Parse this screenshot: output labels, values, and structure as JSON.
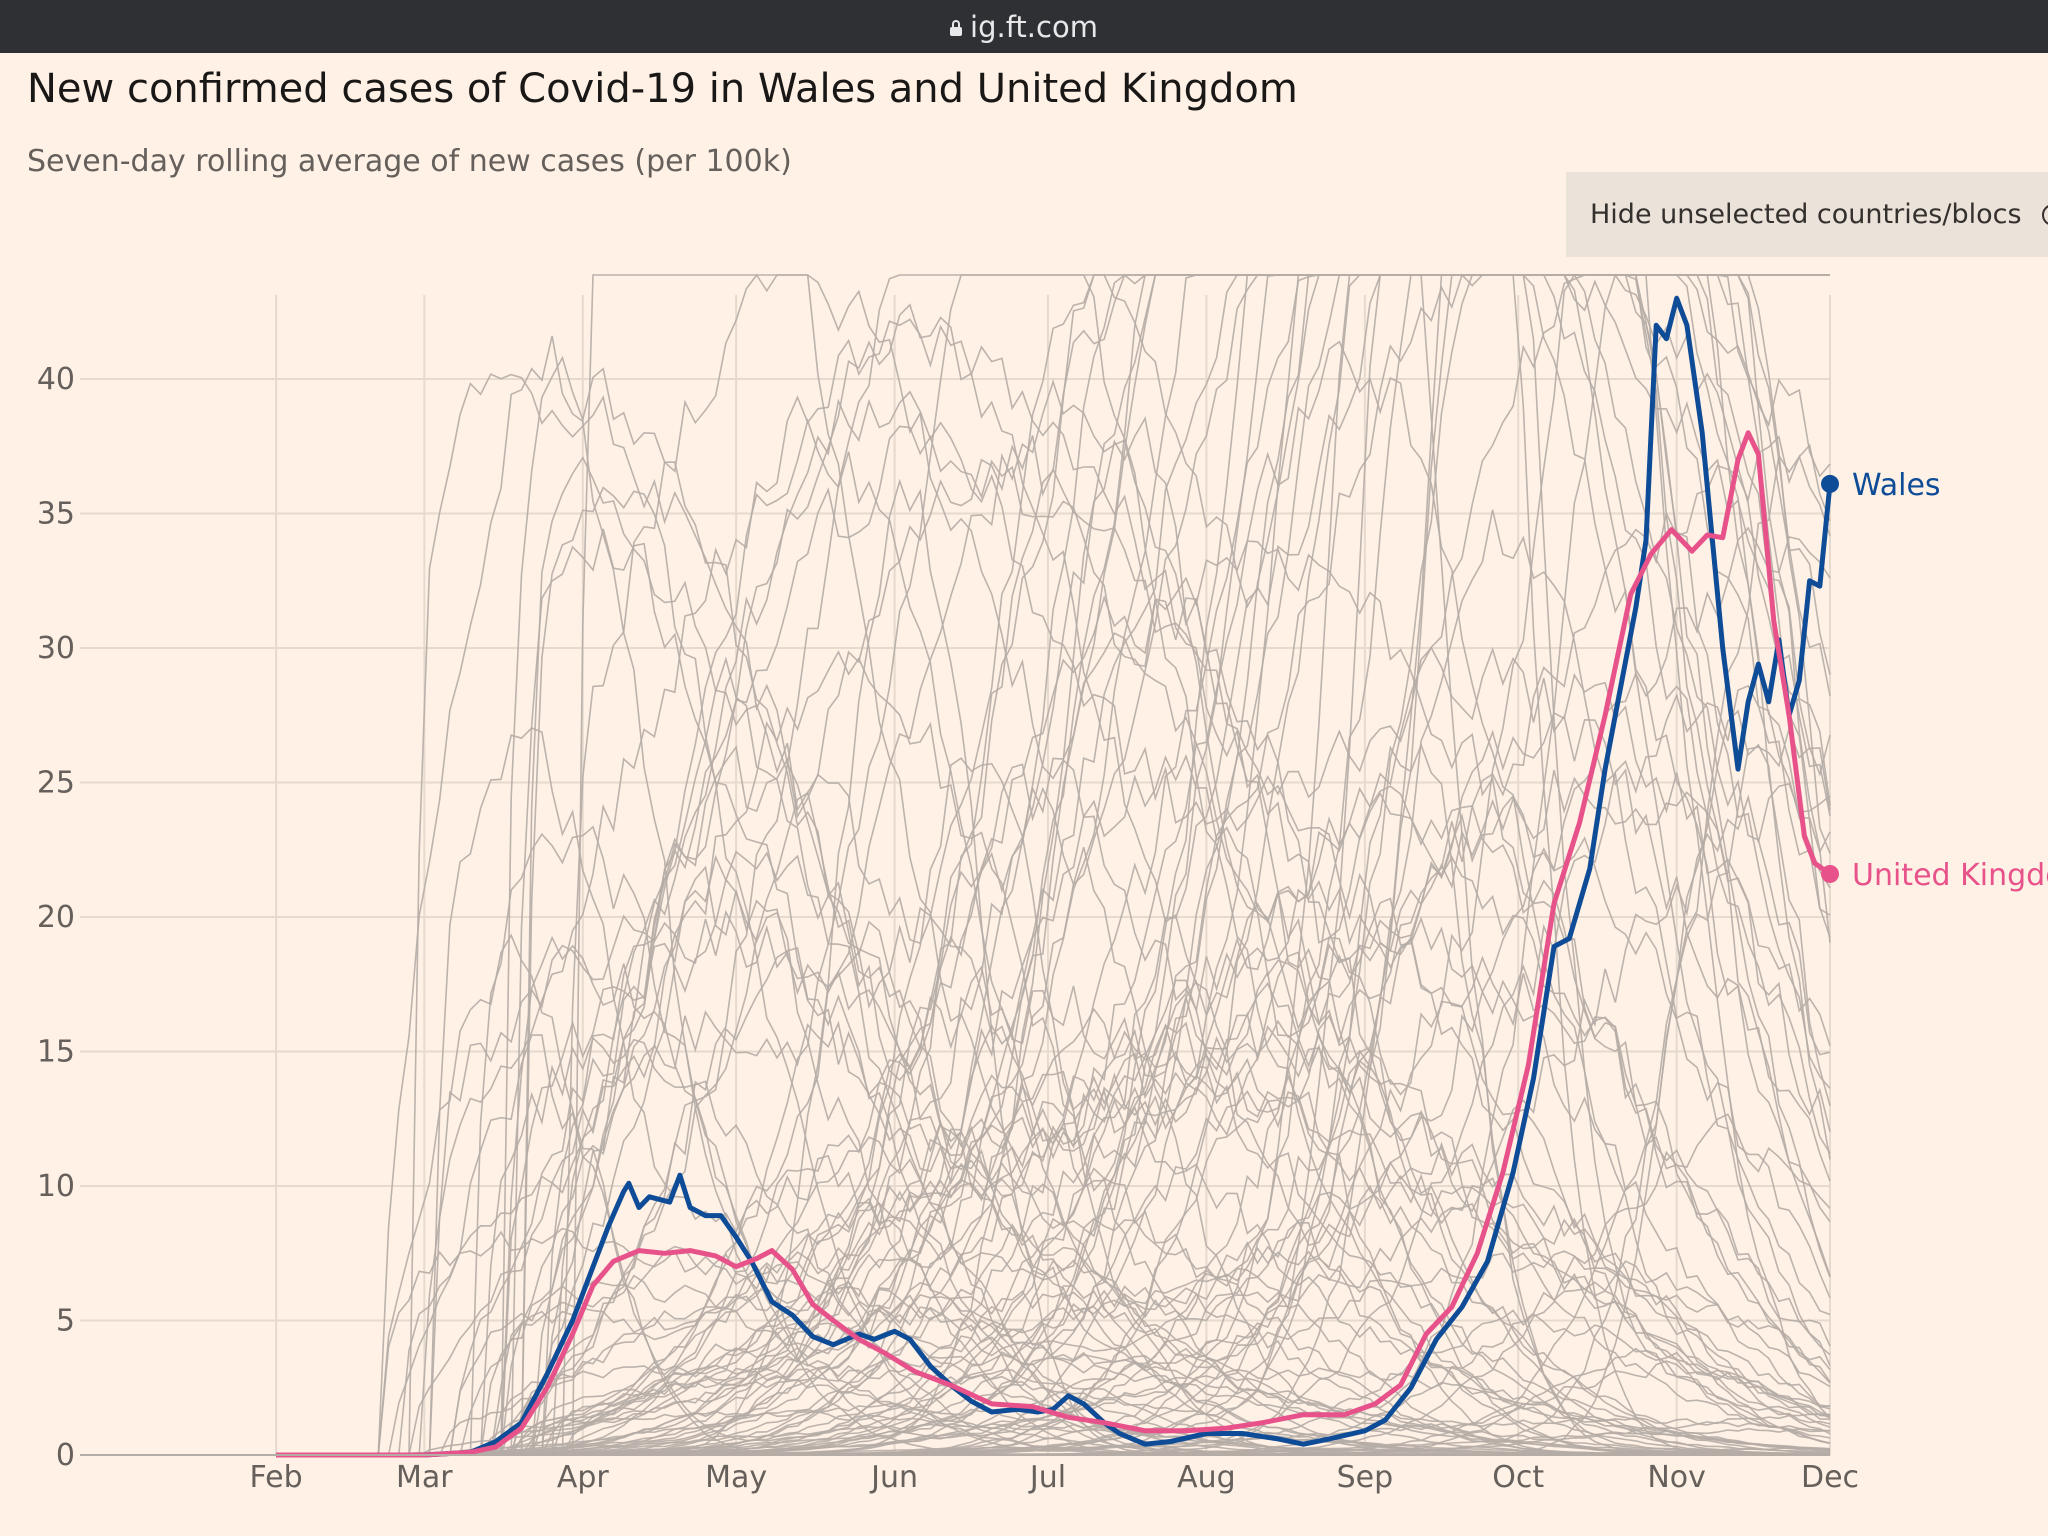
{
  "browser": {
    "url": "ig.ft.com"
  },
  "header": {
    "title": "New confirmed cases of Covid-19 in Wales and United Kingdom",
    "subtitle": "Seven-day rolling average of new cases (per 100k)"
  },
  "toggle": {
    "label": "Hide unselected countries/blocs"
  },
  "colors": {
    "background": "#fff1e5",
    "grid": "#e6d9ce",
    "other_countries": "#b5aca6",
    "wales": "#0f4c97",
    "united_kingdom": "#e8528a"
  },
  "chart_data": {
    "type": "line",
    "title": "New confirmed cases of Covid-19 in Wales and United Kingdom",
    "subtitle": "Seven-day rolling average of new cases (per 100k)",
    "xlabel": "",
    "ylabel": "",
    "x_ticks": [
      "Feb",
      "Mar",
      "Apr",
      "May",
      "Jun",
      "Jul",
      "Aug",
      "Sep",
      "Oct",
      "Nov",
      "Dec"
    ],
    "x_range": [
      "2020-01-22",
      "2020-12-01"
    ],
    "y_ticks": [
      0,
      5,
      10,
      15,
      20,
      25,
      30,
      35,
      40
    ],
    "ylim": [
      0,
      42
    ],
    "grid": true,
    "background_series_note_hidden": true,
    "series": [
      {
        "name": "Wales",
        "points": [
          [
            "2020-02-01",
            0
          ],
          [
            "2020-03-01",
            0
          ],
          [
            "2020-03-10",
            0.1
          ],
          [
            "2020-03-15",
            0.5
          ],
          [
            "2020-03-20",
            1.2
          ],
          [
            "2020-03-25",
            3
          ],
          [
            "2020-03-30",
            5
          ],
          [
            "2020-04-03",
            7
          ],
          [
            "2020-04-06",
            8.5
          ],
          [
            "2020-04-09",
            9.8
          ],
          [
            "2020-04-10",
            10.1
          ],
          [
            "2020-04-12",
            9.2
          ],
          [
            "2020-04-14",
            9.6
          ],
          [
            "2020-04-18",
            9.4
          ],
          [
            "2020-04-20",
            10.4
          ],
          [
            "2020-04-22",
            9.2
          ],
          [
            "2020-04-25",
            8.9
          ],
          [
            "2020-04-28",
            8.9
          ],
          [
            "2020-05-01",
            8.1
          ],
          [
            "2020-05-04",
            7.2
          ],
          [
            "2020-05-08",
            5.7
          ],
          [
            "2020-05-12",
            5.2
          ],
          [
            "2020-05-16",
            4.4
          ],
          [
            "2020-05-20",
            4.1
          ],
          [
            "2020-05-25",
            4.5
          ],
          [
            "2020-05-28",
            4.3
          ],
          [
            "2020-06-01",
            4.6
          ],
          [
            "2020-06-04",
            4.3
          ],
          [
            "2020-06-08",
            3.3
          ],
          [
            "2020-06-12",
            2.6
          ],
          [
            "2020-06-16",
            2.0
          ],
          [
            "2020-06-20",
            1.6
          ],
          [
            "2020-06-25",
            1.7
          ],
          [
            "2020-06-29",
            1.6
          ],
          [
            "2020-07-02",
            1.7
          ],
          [
            "2020-07-05",
            2.2
          ],
          [
            "2020-07-08",
            1.9
          ],
          [
            "2020-07-12",
            1.2
          ],
          [
            "2020-07-15",
            0.8
          ],
          [
            "2020-07-20",
            0.4
          ],
          [
            "2020-07-25",
            0.5
          ],
          [
            "2020-08-01",
            0.8
          ],
          [
            "2020-08-08",
            0.8
          ],
          [
            "2020-08-15",
            0.6
          ],
          [
            "2020-08-20",
            0.4
          ],
          [
            "2020-08-25",
            0.6
          ],
          [
            "2020-09-01",
            0.9
          ],
          [
            "2020-09-05",
            1.3
          ],
          [
            "2020-09-10",
            2.5
          ],
          [
            "2020-09-15",
            4.3
          ],
          [
            "2020-09-20",
            5.5
          ],
          [
            "2020-09-25",
            7.2
          ],
          [
            "2020-09-30",
            10.5
          ],
          [
            "2020-10-04",
            14
          ],
          [
            "2020-10-08",
            18.9
          ],
          [
            "2020-10-11",
            19.2
          ],
          [
            "2020-10-15",
            21.8
          ],
          [
            "2020-10-18",
            25.5
          ],
          [
            "2020-10-21",
            28.5
          ],
          [
            "2020-10-24",
            31.5
          ],
          [
            "2020-10-26",
            34
          ],
          [
            "2020-10-28",
            42
          ],
          [
            "2020-10-30",
            41.5
          ],
          [
            "2020-11-01",
            43
          ],
          [
            "2020-11-03",
            42
          ],
          [
            "2020-11-06",
            38
          ],
          [
            "2020-11-08",
            34
          ],
          [
            "2020-11-10",
            30
          ],
          [
            "2020-11-13",
            25.5
          ],
          [
            "2020-11-15",
            28
          ],
          [
            "2020-11-17",
            29.4
          ],
          [
            "2020-11-19",
            28
          ],
          [
            "2020-11-21",
            30.3
          ],
          [
            "2020-11-23",
            27.5
          ],
          [
            "2020-11-25",
            28.8
          ],
          [
            "2020-11-27",
            32.5
          ],
          [
            "2020-11-29",
            32.3
          ],
          [
            "2020-12-01",
            36.1
          ]
        ]
      },
      {
        "name": "United Kingdom",
        "points": [
          [
            "2020-02-01",
            0
          ],
          [
            "2020-03-01",
            0
          ],
          [
            "2020-03-10",
            0.1
          ],
          [
            "2020-03-15",
            0.3
          ],
          [
            "2020-03-20",
            1.0
          ],
          [
            "2020-03-25",
            2.5
          ],
          [
            "2020-03-30",
            4.5
          ],
          [
            "2020-04-03",
            6.3
          ],
          [
            "2020-04-07",
            7.2
          ],
          [
            "2020-04-12",
            7.6
          ],
          [
            "2020-04-17",
            7.5
          ],
          [
            "2020-04-22",
            7.6
          ],
          [
            "2020-04-27",
            7.4
          ],
          [
            "2020-05-01",
            7.0
          ],
          [
            "2020-05-05",
            7.3
          ],
          [
            "2020-05-08",
            7.6
          ],
          [
            "2020-05-12",
            6.9
          ],
          [
            "2020-05-16",
            5.6
          ],
          [
            "2020-05-20",
            5.0
          ],
          [
            "2020-05-25",
            4.3
          ],
          [
            "2020-05-30",
            3.8
          ],
          [
            "2020-06-05",
            3.1
          ],
          [
            "2020-06-12",
            2.6
          ],
          [
            "2020-06-20",
            1.9
          ],
          [
            "2020-06-28",
            1.8
          ],
          [
            "2020-07-05",
            1.4
          ],
          [
            "2020-07-12",
            1.2
          ],
          [
            "2020-07-20",
            0.9
          ],
          [
            "2020-07-28",
            0.9
          ],
          [
            "2020-08-05",
            1.0
          ],
          [
            "2020-08-12",
            1.2
          ],
          [
            "2020-08-20",
            1.5
          ],
          [
            "2020-08-28",
            1.5
          ],
          [
            "2020-09-03",
            1.9
          ],
          [
            "2020-09-08",
            2.6
          ],
          [
            "2020-09-13",
            4.5
          ],
          [
            "2020-09-18",
            5.5
          ],
          [
            "2020-09-23",
            7.5
          ],
          [
            "2020-09-28",
            10.5
          ],
          [
            "2020-10-03",
            14.5
          ],
          [
            "2020-10-08",
            20.5
          ],
          [
            "2020-10-13",
            23.5
          ],
          [
            "2020-10-18",
            27.5
          ],
          [
            "2020-10-23",
            32
          ],
          [
            "2020-10-27",
            33.5
          ],
          [
            "2020-10-31",
            34.4
          ],
          [
            "2020-11-04",
            33.6
          ],
          [
            "2020-11-07",
            34.2
          ],
          [
            "2020-11-10",
            34.1
          ],
          [
            "2020-11-13",
            37
          ],
          [
            "2020-11-15",
            38
          ],
          [
            "2020-11-17",
            37.2
          ],
          [
            "2020-11-20",
            31
          ],
          [
            "2020-11-23",
            27.5
          ],
          [
            "2020-11-26",
            23
          ],
          [
            "2020-11-28",
            22
          ],
          [
            "2020-12-01",
            21.6
          ]
        ]
      }
    ]
  }
}
